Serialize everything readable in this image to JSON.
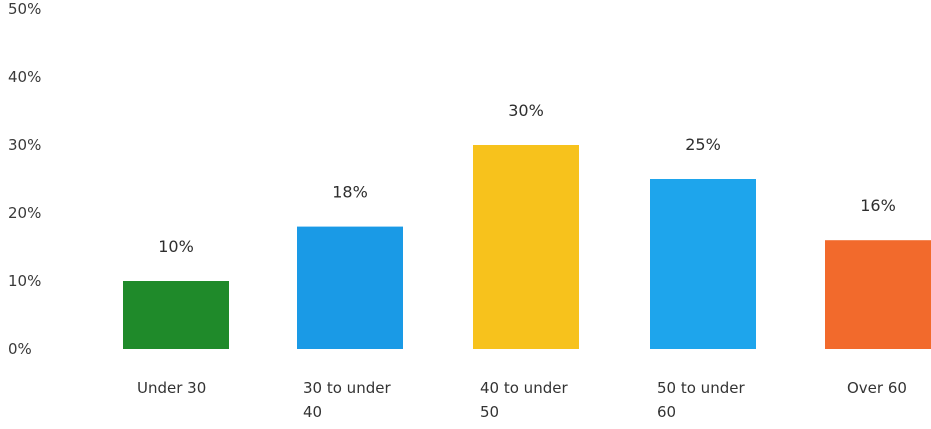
{
  "chart_data": {
    "type": "bar",
    "categories": [
      [
        "Under 30"
      ],
      [
        "30 to under",
        "40"
      ],
      [
        "40 to under",
        "50"
      ],
      [
        "50 to under",
        "60"
      ],
      [
        "Over 60"
      ]
    ],
    "values": [
      10,
      18,
      30,
      25,
      16
    ],
    "value_labels": [
      "10%",
      "18%",
      "30%",
      "25%",
      "16%"
    ],
    "colors": [
      "#1f8a2a",
      "#1a9ae6",
      "#f7c21c",
      "#1ea5ec",
      "#f26a2c"
    ],
    "yticks": [
      0,
      10,
      20,
      30,
      40,
      50
    ],
    "ytick_labels": [
      "0%",
      "10%",
      "20%",
      "30%",
      "40%",
      "50%"
    ],
    "ylim": [
      0,
      50
    ],
    "grid": false,
    "legend": "none"
  }
}
